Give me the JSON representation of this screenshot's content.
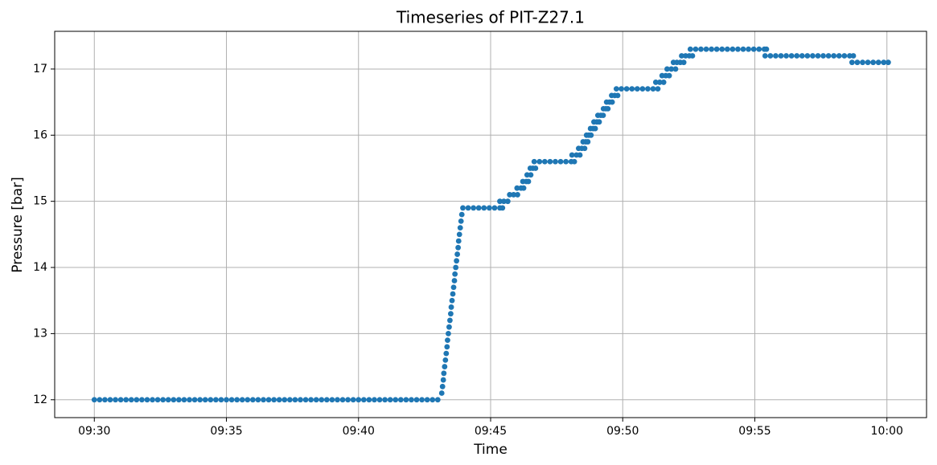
{
  "chart_data": {
    "type": "scatter",
    "title": "Timeseries of PIT-Z27.1",
    "x_label": "Time",
    "y_label": "Pressure [bar]",
    "color": "#1f77b4",
    "grid": true,
    "xlim": [
      -1.5,
      31.5
    ],
    "xticks": [
      {
        "value": 0,
        "label": "09:30"
      },
      {
        "value": 5,
        "label": "09:35"
      },
      {
        "value": 10,
        "label": "09:40"
      },
      {
        "value": 15,
        "label": "09:45"
      },
      {
        "value": 20,
        "label": "09:50"
      },
      {
        "value": 25,
        "label": "09:55"
      },
      {
        "value": 30,
        "label": "10:00"
      }
    ],
    "ylim": [
      11.73,
      17.57
    ],
    "yticks": [
      12,
      13,
      14,
      15,
      16,
      17
    ],
    "x": [
      0,
      0.2,
      0.4,
      0.6,
      0.8,
      1,
      1.2,
      1.4,
      1.6,
      1.8,
      2,
      2.2,
      2.4,
      2.6,
      2.8,
      3,
      3.2,
      3.4,
      3.6,
      3.8,
      4,
      4.2,
      4.4,
      4.6,
      4.8,
      5,
      5.2,
      5.4,
      5.6,
      5.8,
      6,
      6.2,
      6.4,
      6.6,
      6.8,
      7,
      7.2,
      7.4,
      7.6,
      7.8,
      8,
      8.2,
      8.4,
      8.6,
      8.8,
      9,
      9.2,
      9.4,
      9.6,
      9.8,
      10,
      10.2,
      10.4,
      10.6,
      10.8,
      11,
      11.2,
      11.4,
      11.6,
      11.8,
      12,
      12.2,
      12.4,
      12.6,
      12.8,
      13,
      13.15,
      13.18,
      13.21,
      13.23,
      13.26,
      13.29,
      13.32,
      13.35,
      13.37,
      13.4,
      13.43,
      13.46,
      13.49,
      13.51,
      13.54,
      13.57,
      13.6,
      13.63,
      13.65,
      13.68,
      13.71,
      13.74,
      13.77,
      13.79,
      13.82,
      13.85,
      13.88,
      13.91,
      13.95,
      14.15,
      14.35,
      14.55,
      14.75,
      14.95,
      15.15,
      15.35,
      15.45,
      15.35,
      15.5,
      15.65,
      15.72,
      15.87,
      16.02,
      16,
      16.15,
      16.25,
      16.22,
      16.35,
      16.43,
      16.38,
      16.52,
      16.5,
      16.6,
      16.7,
      16.65,
      16.85,
      17.05,
      17.25,
      17.45,
      17.65,
      17.85,
      18.05,
      18.17,
      18.08,
      18.25,
      18.38,
      18.33,
      18.45,
      18.56,
      18.5,
      18.6,
      18.68,
      18.63,
      18.72,
      18.8,
      18.78,
      18.88,
      18.96,
      18.91,
      19.02,
      19.11,
      19.06,
      19.17,
      19.26,
      19.27,
      19.36,
      19.44,
      19.39,
      19.5,
      19.6,
      19.58,
      19.7,
      19.81,
      19.76,
      19.95,
      20.15,
      20.35,
      20.55,
      20.75,
      20.95,
      21.15,
      21.33,
      21.25,
      21.4,
      21.55,
      21.49,
      21.63,
      21.76,
      21.68,
      21.84,
      22,
      21.92,
      22.05,
      22.18,
      22.31,
      22.23,
      22.38,
      22.52,
      22.64,
      22.56,
      22.76,
      22.96,
      23.16,
      23.36,
      23.56,
      23.76,
      23.96,
      24.16,
      24.36,
      24.56,
      24.76,
      24.96,
      25.16,
      25.36,
      25.44,
      25.39,
      25.59,
      25.79,
      25.99,
      26.19,
      26.39,
      26.59,
      26.79,
      26.99,
      27.19,
      27.39,
      27.59,
      27.79,
      27.99,
      28.19,
      28.39,
      28.59,
      28.73,
      28.68,
      28.88,
      29.08,
      29.28,
      29.48,
      29.68,
      29.88,
      30.05
    ],
    "values": [
      12,
      12,
      12,
      12,
      12,
      12,
      12,
      12,
      12,
      12,
      12,
      12,
      12,
      12,
      12,
      12,
      12,
      12,
      12,
      12,
      12,
      12,
      12,
      12,
      12,
      12,
      12,
      12,
      12,
      12,
      12,
      12,
      12,
      12,
      12,
      12,
      12,
      12,
      12,
      12,
      12,
      12,
      12,
      12,
      12,
      12,
      12,
      12,
      12,
      12,
      12,
      12,
      12,
      12,
      12,
      12,
      12,
      12,
      12,
      12,
      12,
      12,
      12,
      12,
      12,
      12,
      12.1,
      12.2,
      12.3,
      12.4,
      12.5,
      12.6,
      12.7,
      12.8,
      12.9,
      13,
      13.1,
      13.2,
      13.3,
      13.4,
      13.5,
      13.6,
      13.7,
      13.8,
      13.9,
      14,
      14.1,
      14.2,
      14.3,
      14.4,
      14.5,
      14.6,
      14.7,
      14.8,
      14.9,
      14.9,
      14.9,
      14.9,
      14.9,
      14.9,
      14.9,
      14.9,
      14.9,
      15,
      15,
      15,
      15.1,
      15.1,
      15.1,
      15.2,
      15.2,
      15.2,
      15.3,
      15.3,
      15.3,
      15.4,
      15.4,
      15.5,
      15.5,
      15.5,
      15.6,
      15.6,
      15.6,
      15.6,
      15.6,
      15.6,
      15.6,
      15.6,
      15.6,
      15.7,
      15.7,
      15.7,
      15.8,
      15.8,
      15.8,
      15.9,
      15.9,
      15.9,
      16,
      16,
      16,
      16.1,
      16.1,
      16.1,
      16.2,
      16.2,
      16.2,
      16.3,
      16.3,
      16.3,
      16.4,
      16.4,
      16.4,
      16.5,
      16.5,
      16.5,
      16.6,
      16.6,
      16.6,
      16.7,
      16.7,
      16.7,
      16.7,
      16.7,
      16.7,
      16.7,
      16.7,
      16.7,
      16.8,
      16.8,
      16.8,
      16.9,
      16.9,
      16.9,
      17,
      17,
      17,
      17.1,
      17.1,
      17.1,
      17.1,
      17.2,
      17.2,
      17.2,
      17.2,
      17.3,
      17.3,
      17.3,
      17.3,
      17.3,
      17.3,
      17.3,
      17.3,
      17.3,
      17.3,
      17.3,
      17.3,
      17.3,
      17.3,
      17.3,
      17.3,
      17.2,
      17.2,
      17.2,
      17.2,
      17.2,
      17.2,
      17.2,
      17.2,
      17.2,
      17.2,
      17.2,
      17.2,
      17.2,
      17.2,
      17.2,
      17.2,
      17.2,
      17.2,
      17.1,
      17.1,
      17.1,
      17.1,
      17.1,
      17.1,
      17.1,
      17.1
    ]
  }
}
